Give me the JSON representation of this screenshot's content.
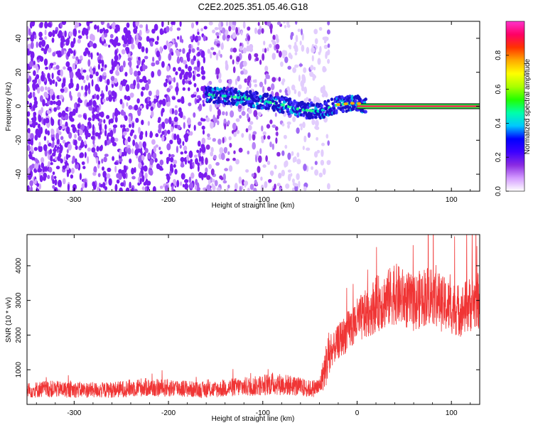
{
  "title": "C2E2.2025.351.05.46.G18",
  "colors": {
    "snr_line": "#f03535",
    "scatter_purple": "#7b1df0",
    "frame": "#000000",
    "colorbar": [
      "#ffffff",
      "#d49cff",
      "#8a2be2",
      "#3d00ff",
      "#0000ff",
      "#00c8ff",
      "#00ffaa",
      "#22ff00",
      "#aaff00",
      "#ffff00",
      "#ffaa00",
      "#ff3300",
      "#ff0066",
      "#ff33cc"
    ]
  },
  "chart_data": [
    {
      "type": "heatmap",
      "xlabel": "Height of straight line (km)",
      "ylabel": "Frequency (Hz)",
      "xlim": [
        -350,
        130
      ],
      "ylim": [
        -50,
        50
      ],
      "x_ticks": [
        -300,
        -200,
        -100,
        0,
        100
      ],
      "y_ticks": [
        -40,
        -20,
        0,
        20,
        40
      ],
      "colorbar": {
        "label": "Normalized spectral amplitude",
        "range": [
          0,
          1
        ],
        "ticks": [
          "0.0",
          "0.2",
          "0.4",
          "0.6",
          "0.8"
        ],
        "tick_values": [
          0.0,
          0.2,
          0.4,
          0.6,
          0.8
        ]
      },
      "signal_trace": {
        "x": [
          -160,
          -140,
          -120,
          -100,
          -80,
          -60,
          -40,
          -20,
          0,
          10,
          130
        ],
        "y": [
          7,
          6,
          5,
          3,
          1,
          -2,
          -3,
          1,
          2,
          0,
          0
        ]
      },
      "noise_region_x": [
        -350,
        -50
      ]
    },
    {
      "type": "line",
      "xlabel": "Height of straight line (km)",
      "ylabel": "SNR (10 * v/v)",
      "xlim": [
        -350,
        130
      ],
      "ylim": [
        0,
        4900
      ],
      "x_ticks": [
        -300,
        -200,
        -100,
        0,
        100
      ],
      "y_ticks": [
        1000,
        2000,
        3000,
        4000
      ],
      "series": [
        {
          "x": [
            -350,
            -330,
            -310,
            -290,
            -270,
            -250,
            -230,
            -210,
            -190,
            -170,
            -150,
            -130,
            -110,
            -90,
            -70,
            -50,
            -40,
            -30,
            -20,
            -10,
            0,
            10,
            20,
            30,
            40,
            50,
            60,
            70,
            80,
            90,
            100,
            110,
            120,
            130
          ],
          "y": [
            400,
            450,
            430,
            420,
            410,
            440,
            500,
            470,
            480,
            420,
            430,
            500,
            520,
            600,
            550,
            450,
            500,
            1400,
            1800,
            2100,
            2400,
            2600,
            2900,
            3000,
            3200,
            3050,
            2900,
            3100,
            3200,
            2900,
            2800,
            2700,
            2900,
            3000
          ]
        }
      ]
    }
  ]
}
